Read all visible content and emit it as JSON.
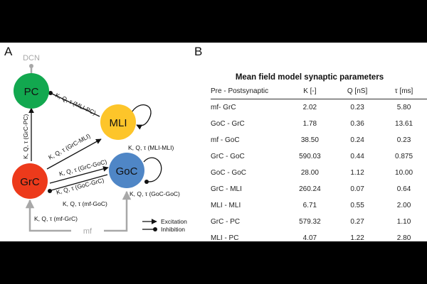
{
  "panels": {
    "a": "A",
    "b": "B"
  },
  "diagram": {
    "nodes": {
      "pc": "PC",
      "mli": "MLI",
      "grc": "GrC",
      "goc": "GoC",
      "dcn": "DCN",
      "mf": "mf"
    },
    "edges": {
      "mli_pc": "K, Q, τ (MLI-PC)",
      "grc_pc": "K, Q, τ (GrC-PC)",
      "grc_mli": "K, Q, τ (GrC-MLI)",
      "mli_mli": "K, Q, τ (MLI-MLI)",
      "grc_goc": "K, Q, τ (GrC-GoC)",
      "goc_grc": "K, Q, τ (GoC-GrC)",
      "goc_goc": "K, Q, τ (GoC-GoC)",
      "mf_goc": "K, Q, τ (mf-GoC)",
      "mf_grc": "K, Q, τ (mf-GrC)"
    },
    "legend": {
      "excitation": "Excitation",
      "inhibition": "Inhibition"
    },
    "colors": {
      "pc": "#12a84f",
      "mli": "#fdc52a",
      "grc": "#ed3a1b",
      "goc": "#4f86c6",
      "gray": "#a8a8a8"
    }
  },
  "table": {
    "title": "Mean field model synaptic parameters",
    "headers": [
      "Pre - Postsynaptic",
      "K [-]",
      "Q [nS]",
      "τ [ms]"
    ],
    "rows": [
      [
        "mf- GrC",
        "2.02",
        "0.23",
        "5.80"
      ],
      [
        "GoC - GrC",
        "1.78",
        "0.36",
        "13.61"
      ],
      [
        "mf - GoC",
        "38.50",
        "0.24",
        "0.23"
      ],
      [
        "GrC - GoC",
        "590.03",
        "0.44",
        "0.875"
      ],
      [
        "GoC - GoC",
        "28.00",
        "1.12",
        "10.00"
      ],
      [
        "GrC - MLI",
        "260.24",
        "0.07",
        "0.64"
      ],
      [
        "MLI - MLI",
        "6.71",
        "0.55",
        "2.00"
      ],
      [
        "GrC - PC",
        "579.32",
        "0.27",
        "1.10"
      ],
      [
        "MLI - PC",
        "4.07",
        "1.22",
        "2.80"
      ]
    ]
  }
}
